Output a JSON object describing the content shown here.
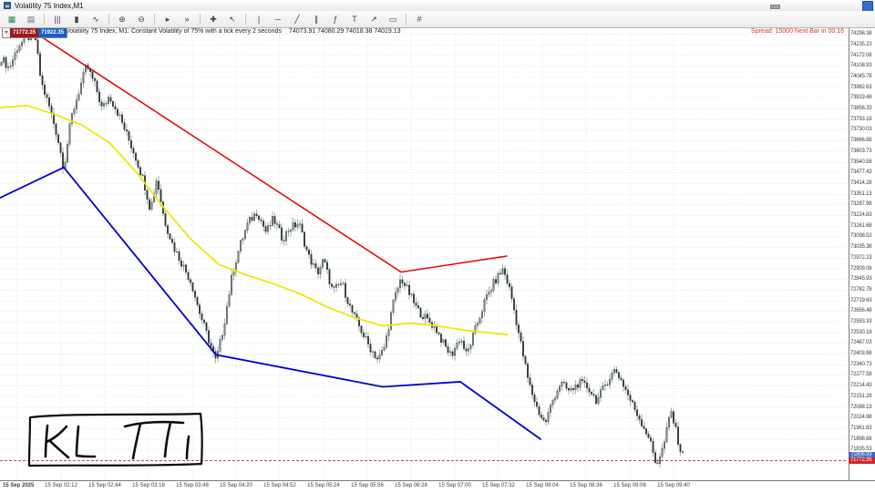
{
  "window": {
    "title": "Volatility 75 Index,M1"
  },
  "toolbar": {
    "items": [
      {
        "type": "btn",
        "name": "new-chart",
        "glyph": "▦",
        "color": "#1f8a4c"
      },
      {
        "type": "btn",
        "name": "tile-windows",
        "glyph": "▤",
        "color": "#5a6a7a"
      },
      {
        "type": "sep"
      },
      {
        "type": "btn",
        "name": "bars-chart",
        "glyph": "|||"
      },
      {
        "type": "btn",
        "name": "candlestick-chart",
        "glyph": "▮"
      },
      {
        "type": "btn",
        "name": "line-chart",
        "glyph": "∿"
      },
      {
        "type": "sep"
      },
      {
        "type": "btn",
        "name": "zoom-in",
        "glyph": "⊕"
      },
      {
        "type": "btn",
        "name": "zoom-out",
        "glyph": "⊖"
      },
      {
        "type": "sep"
      },
      {
        "type": "btn",
        "name": "auto-scroll",
        "glyph": "▸"
      },
      {
        "type": "btn",
        "name": "chart-shift",
        "glyph": "»"
      },
      {
        "type": "sep"
      },
      {
        "type": "btn",
        "name": "crosshair",
        "glyph": "✚"
      },
      {
        "type": "btn",
        "name": "cursor",
        "glyph": "↖"
      },
      {
        "type": "sep"
      },
      {
        "type": "btn",
        "name": "vertical-line",
        "glyph": "|"
      },
      {
        "type": "btn",
        "name": "horizontal-line",
        "glyph": "─"
      },
      {
        "type": "btn",
        "name": "trendline",
        "glyph": "╱"
      },
      {
        "type": "btn",
        "name": "equidistant-channel",
        "glyph": "∥"
      },
      {
        "type": "btn",
        "name": "fibonacci",
        "glyph": "ƒ"
      },
      {
        "type": "btn",
        "name": "text-label",
        "glyph": "T"
      },
      {
        "type": "btn",
        "name": "arrows",
        "glyph": "↗"
      },
      {
        "type": "btn",
        "name": "shapes",
        "glyph": "▭"
      },
      {
        "type": "sep"
      },
      {
        "type": "btn",
        "name": "indicators",
        "glyph": "#"
      }
    ]
  },
  "chart": {
    "info_symbol": "Volatility 75 Index, M1: Constant Volatility of 75% with a tick every 2 seconds",
    "info_ohlc": "74073.91  74080.29  74018.38  74019.13",
    "spread_text": "Spread: 15000   Next Bar in 00:16",
    "one_click": {
      "collapse_glyph": "▾",
      "sell": "71772.35",
      "buy": "71922.35"
    }
  },
  "annotation": {
    "text": "KL"
  },
  "chart_data": {
    "type": "candlestick",
    "symbol": "Volatility 75 Index",
    "timeframe": "M1",
    "plot": {
      "price_top": 74340,
      "price_bottom": 71662
    },
    "y_axis": {
      "start": 74298.38,
      "step": 63.15,
      "count": 40,
      "decimals": 2
    },
    "x_labels": [
      "15 Sep 2025",
      "15 Sep 02:12",
      "15 Sep 02:44",
      "15 Sep 03:16",
      "15 Sep 03:48",
      "15 Sep 04:20",
      "15 Sep 04:52",
      "15 Sep 05:24",
      "15 Sep 05:56",
      "15 Sep 06:28",
      "15 Sep 07:00",
      "15 Sep 07:32",
      "15 Sep 08:04",
      "15 Sep 08:36",
      "15 Sep 09:08",
      "15 Sep 09:40"
    ],
    "price_path": [
      [
        0,
        74170
      ],
      [
        10,
        74097
      ],
      [
        20,
        74232
      ],
      [
        38,
        74310
      ],
      [
        45,
        74016
      ],
      [
        55,
        73854
      ],
      [
        63,
        73692
      ],
      [
        70,
        73503
      ],
      [
        78,
        73800
      ],
      [
        88,
        73989
      ],
      [
        95,
        74113
      ],
      [
        105,
        73989
      ],
      [
        112,
        73854
      ],
      [
        120,
        73935
      ],
      [
        130,
        73827
      ],
      [
        140,
        73692
      ],
      [
        148,
        73584
      ],
      [
        158,
        73422
      ],
      [
        165,
        73260
      ],
      [
        172,
        73449
      ],
      [
        180,
        73206
      ],
      [
        190,
        73044
      ],
      [
        200,
        72936
      ],
      [
        210,
        72828
      ],
      [
        218,
        72666
      ],
      [
        228,
        72504
      ],
      [
        237,
        72358
      ],
      [
        245,
        72558
      ],
      [
        255,
        72882
      ],
      [
        263,
        73044
      ],
      [
        272,
        73179
      ],
      [
        282,
        73249
      ],
      [
        292,
        73125
      ],
      [
        300,
        73206
      ],
      [
        310,
        73087
      ],
      [
        318,
        73152
      ],
      [
        328,
        73179
      ],
      [
        338,
        72990
      ],
      [
        348,
        72882
      ],
      [
        355,
        72963
      ],
      [
        365,
        72774
      ],
      [
        375,
        72828
      ],
      [
        385,
        72666
      ],
      [
        395,
        72558
      ],
      [
        405,
        72450
      ],
      [
        415,
        72369
      ],
      [
        422,
        72450
      ],
      [
        432,
        72720
      ],
      [
        440,
        72855
      ],
      [
        448,
        72774
      ],
      [
        458,
        72666
      ],
      [
        468,
        72612
      ],
      [
        478,
        72558
      ],
      [
        488,
        72450
      ],
      [
        495,
        72396
      ],
      [
        505,
        72504
      ],
      [
        512,
        72396
      ],
      [
        522,
        72558
      ],
      [
        532,
        72720
      ],
      [
        542,
        72828
      ],
      [
        552,
        72909
      ],
      [
        560,
        72774
      ],
      [
        570,
        72504
      ],
      [
        580,
        72234
      ],
      [
        590,
        72072
      ],
      [
        598,
        71991
      ],
      [
        606,
        72126
      ],
      [
        615,
        72234
      ],
      [
        625,
        72180
      ],
      [
        635,
        72234
      ],
      [
        645,
        72207
      ],
      [
        655,
        72126
      ],
      [
        665,
        72234
      ],
      [
        675,
        72315
      ],
      [
        683,
        72234
      ],
      [
        692,
        72126
      ],
      [
        702,
        72018
      ],
      [
        712,
        71910
      ],
      [
        720,
        71748
      ],
      [
        728,
        71856
      ],
      [
        736,
        72072
      ],
      [
        742,
        71937
      ],
      [
        748,
        71802
      ]
    ],
    "overlays": [
      {
        "name": "yellow-ma",
        "color": "#f0e60a",
        "width": 1.8,
        "points": [
          [
            0,
            73865
          ],
          [
            30,
            73876
          ],
          [
            60,
            73824
          ],
          [
            90,
            73761
          ],
          [
            120,
            73657
          ],
          [
            150,
            73479
          ],
          [
            180,
            73270
          ],
          [
            210,
            73082
          ],
          [
            240,
            72936
          ],
          [
            270,
            72874
          ],
          [
            300,
            72821
          ],
          [
            330,
            72759
          ],
          [
            360,
            72681
          ],
          [
            390,
            72618
          ],
          [
            420,
            72571
          ],
          [
            450,
            72587
          ],
          [
            480,
            72571
          ],
          [
            510,
            72545
          ],
          [
            540,
            72529
          ],
          [
            557,
            72519
          ]
        ]
      },
      {
        "name": "blue-trendline",
        "color": "#0000d0",
        "width": 1.8,
        "points": [
          [
            0,
            73330
          ],
          [
            70,
            73510
          ],
          [
            237,
            72400
          ],
          [
            420,
            72210
          ],
          [
            505,
            72240
          ],
          [
            593,
            71900
          ]
        ]
      },
      {
        "name": "red-trendline",
        "color": "#e00000",
        "width": 1.5,
        "points": [
          [
            38,
            74310
          ],
          [
            440,
            72890
          ],
          [
            556,
            72985
          ]
        ]
      }
    ],
    "current": {
      "bid": "71806.93",
      "last": "71772.35"
    },
    "colors": {
      "candle_up": "#7c8d89",
      "candle_down": "#2e3936",
      "wick": "#4c5a56",
      "grid": "#d4d4d4",
      "bid_badge": "#3b66c4",
      "last_badge": "#cc2a2a",
      "last_line": "#cc2a2a"
    }
  }
}
